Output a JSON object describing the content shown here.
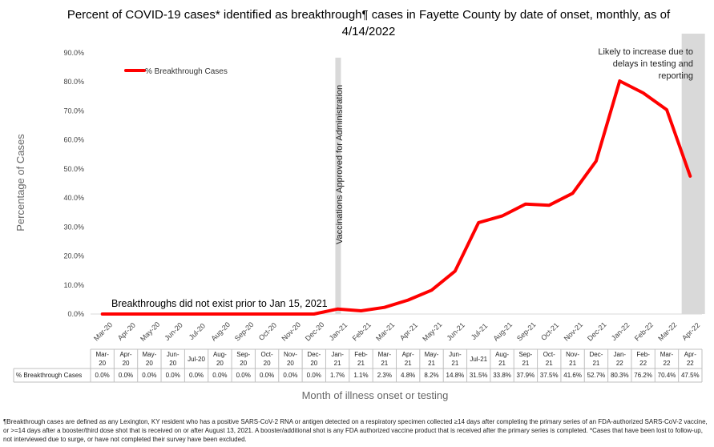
{
  "title": {
    "line1": "Percent of COVID-19 cases* identified as breakthrough¶ cases in Fayette County by date of onset, monthly, as of",
    "line2": "4/14/2022"
  },
  "colors": {
    "series": "#ff0000",
    "shade": "#d9d9d9",
    "grid": "#d9d9d9"
  },
  "annotations": {
    "vaccination": "Vaccinations Approved for Administration",
    "no_breakthrough": "Breakthroughs did not exist prior to Jan 15, 2021",
    "likely_increase": [
      "Likely to increase due to",
      "delays in testing and",
      "reporting"
    ]
  },
  "table": {
    "row_label": "% Breakthrough Cases",
    "category_labels": [
      [
        "Mar-",
        "20"
      ],
      [
        "Apr-",
        "20"
      ],
      [
        "May-",
        "20"
      ],
      [
        "Jun-",
        "20"
      ],
      [
        "Jul-20"
      ],
      [
        "Aug-",
        "20"
      ],
      [
        "Sep-",
        "20"
      ],
      [
        "Oct-",
        "20"
      ],
      [
        "Nov-",
        "20"
      ],
      [
        "Dec-",
        "20"
      ],
      [
        "Jan-",
        "21"
      ],
      [
        "Feb-",
        "21"
      ],
      [
        "Mar-",
        "21"
      ],
      [
        "Apr-",
        "21"
      ],
      [
        "May-",
        "21"
      ],
      [
        "Jun-",
        "21"
      ],
      [
        "Jul-21"
      ],
      [
        "Aug-",
        "21"
      ],
      [
        "Sep-",
        "21"
      ],
      [
        "Oct-",
        "21"
      ],
      [
        "Nov-",
        "21"
      ],
      [
        "Dec-",
        "21"
      ],
      [
        "Jan-",
        "22"
      ],
      [
        "Feb-",
        "22"
      ],
      [
        "Mar-",
        "22"
      ],
      [
        "Apr-",
        "22"
      ]
    ],
    "values_text": [
      "0.0%",
      "0.0%",
      "0.0%",
      "0.0%",
      "0.0%",
      "0.0%",
      "0.0%",
      "0.0%",
      "0.0%",
      "0.0%",
      "1.7%",
      "1.1%",
      "2.3%",
      "4.8%",
      "8.2%",
      "14.8%",
      "31.5%",
      "33.8%",
      "37.9%",
      "37.5%",
      "41.6%",
      "52.7%",
      "80.3%",
      "76.2%",
      "70.4%",
      "47.5%"
    ]
  },
  "footnote": "¶Breakthrough cases are defined as any Lexington, KY resident who has a positive SARS-CoV-2 RNA or antigen detected on a respiratory specimen collected ≥14 days after completing the primary series of an FDA-authorized SARS-CoV-2 vaccine, or >=14 days after a booster/third dose shot that is received on or after August 13, 2021.  A booster/additional shot is any FDA authorized vaccine product that is received after the primary series is completed. *Cases that have been lost to follow-up, not interviewed due to surge, or have not completed their survey have been excluded.",
  "chart_data": {
    "type": "line",
    "title": "Percent of COVID-19 cases* identified as breakthrough¶ cases in Fayette County by date of onset, monthly, as of 4/14/2022",
    "xlabel": "Month of illness onset or testing",
    "ylabel": "Percentage of Cases",
    "ylim": [
      0,
      90
    ],
    "yticks": [
      "0.0%",
      "10.0%",
      "20.0%",
      "30.0%",
      "40.0%",
      "50.0%",
      "60.0%",
      "70.0%",
      "80.0%",
      "90.0%"
    ],
    "grid": false,
    "legend_position": "top-left",
    "categories": [
      "Mar-20",
      "Apr-20",
      "May-20",
      "Jun-20",
      "Jul-20",
      "Aug-20",
      "Sep-20",
      "Oct-20",
      "Nov-20",
      "Dec-20",
      "Jan-21",
      "Feb-21",
      "Mar-21",
      "Apr-21",
      "May-21",
      "Jun-21",
      "Jul-21",
      "Aug-21",
      "Sep-21",
      "Oct-21",
      "Nov-21",
      "Dec-21",
      "Jan-22",
      "Feb-22",
      "Mar-22",
      "Apr-22"
    ],
    "series": [
      {
        "name": "% Breakthrough Cases",
        "values": [
          0.0,
          0.0,
          0.0,
          0.0,
          0.0,
          0.0,
          0.0,
          0.0,
          0.0,
          0.0,
          1.7,
          1.1,
          2.3,
          4.8,
          8.2,
          14.8,
          31.5,
          33.8,
          37.9,
          37.5,
          41.6,
          52.7,
          80.3,
          76.2,
          70.4,
          47.5
        ]
      }
    ],
    "highlight_regions": [
      {
        "label": "Vaccinations Approved for Administration",
        "at_category": "Jan-21"
      },
      {
        "label": "Likely to increase due to delays in testing and reporting",
        "at_category": "Apr-22"
      }
    ]
  }
}
